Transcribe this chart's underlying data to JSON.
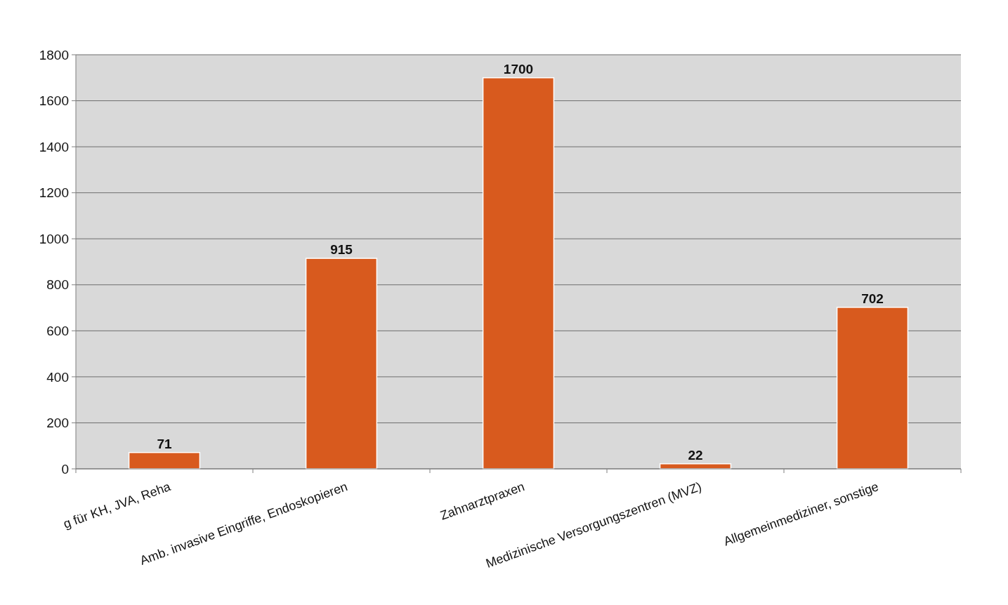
{
  "chart_data": {
    "type": "bar",
    "categories": [
      "g für KH, JVA, Reha",
      "Amb. invasive Eingriffe, Endoskopieren",
      "Zahnarztpraxen",
      "Medizinische Versorgungszentren (MVZ)",
      "Allgemeinmediziner, sonstige"
    ],
    "values": [
      71,
      915,
      1700,
      22,
      702
    ],
    "color": "#d85a1e",
    "ylim": [
      0,
      1800
    ],
    "yticks": [
      0,
      200,
      400,
      600,
      800,
      1000,
      1200,
      1400,
      1600,
      1800
    ],
    "grid": "y",
    "data_labels": true
  }
}
